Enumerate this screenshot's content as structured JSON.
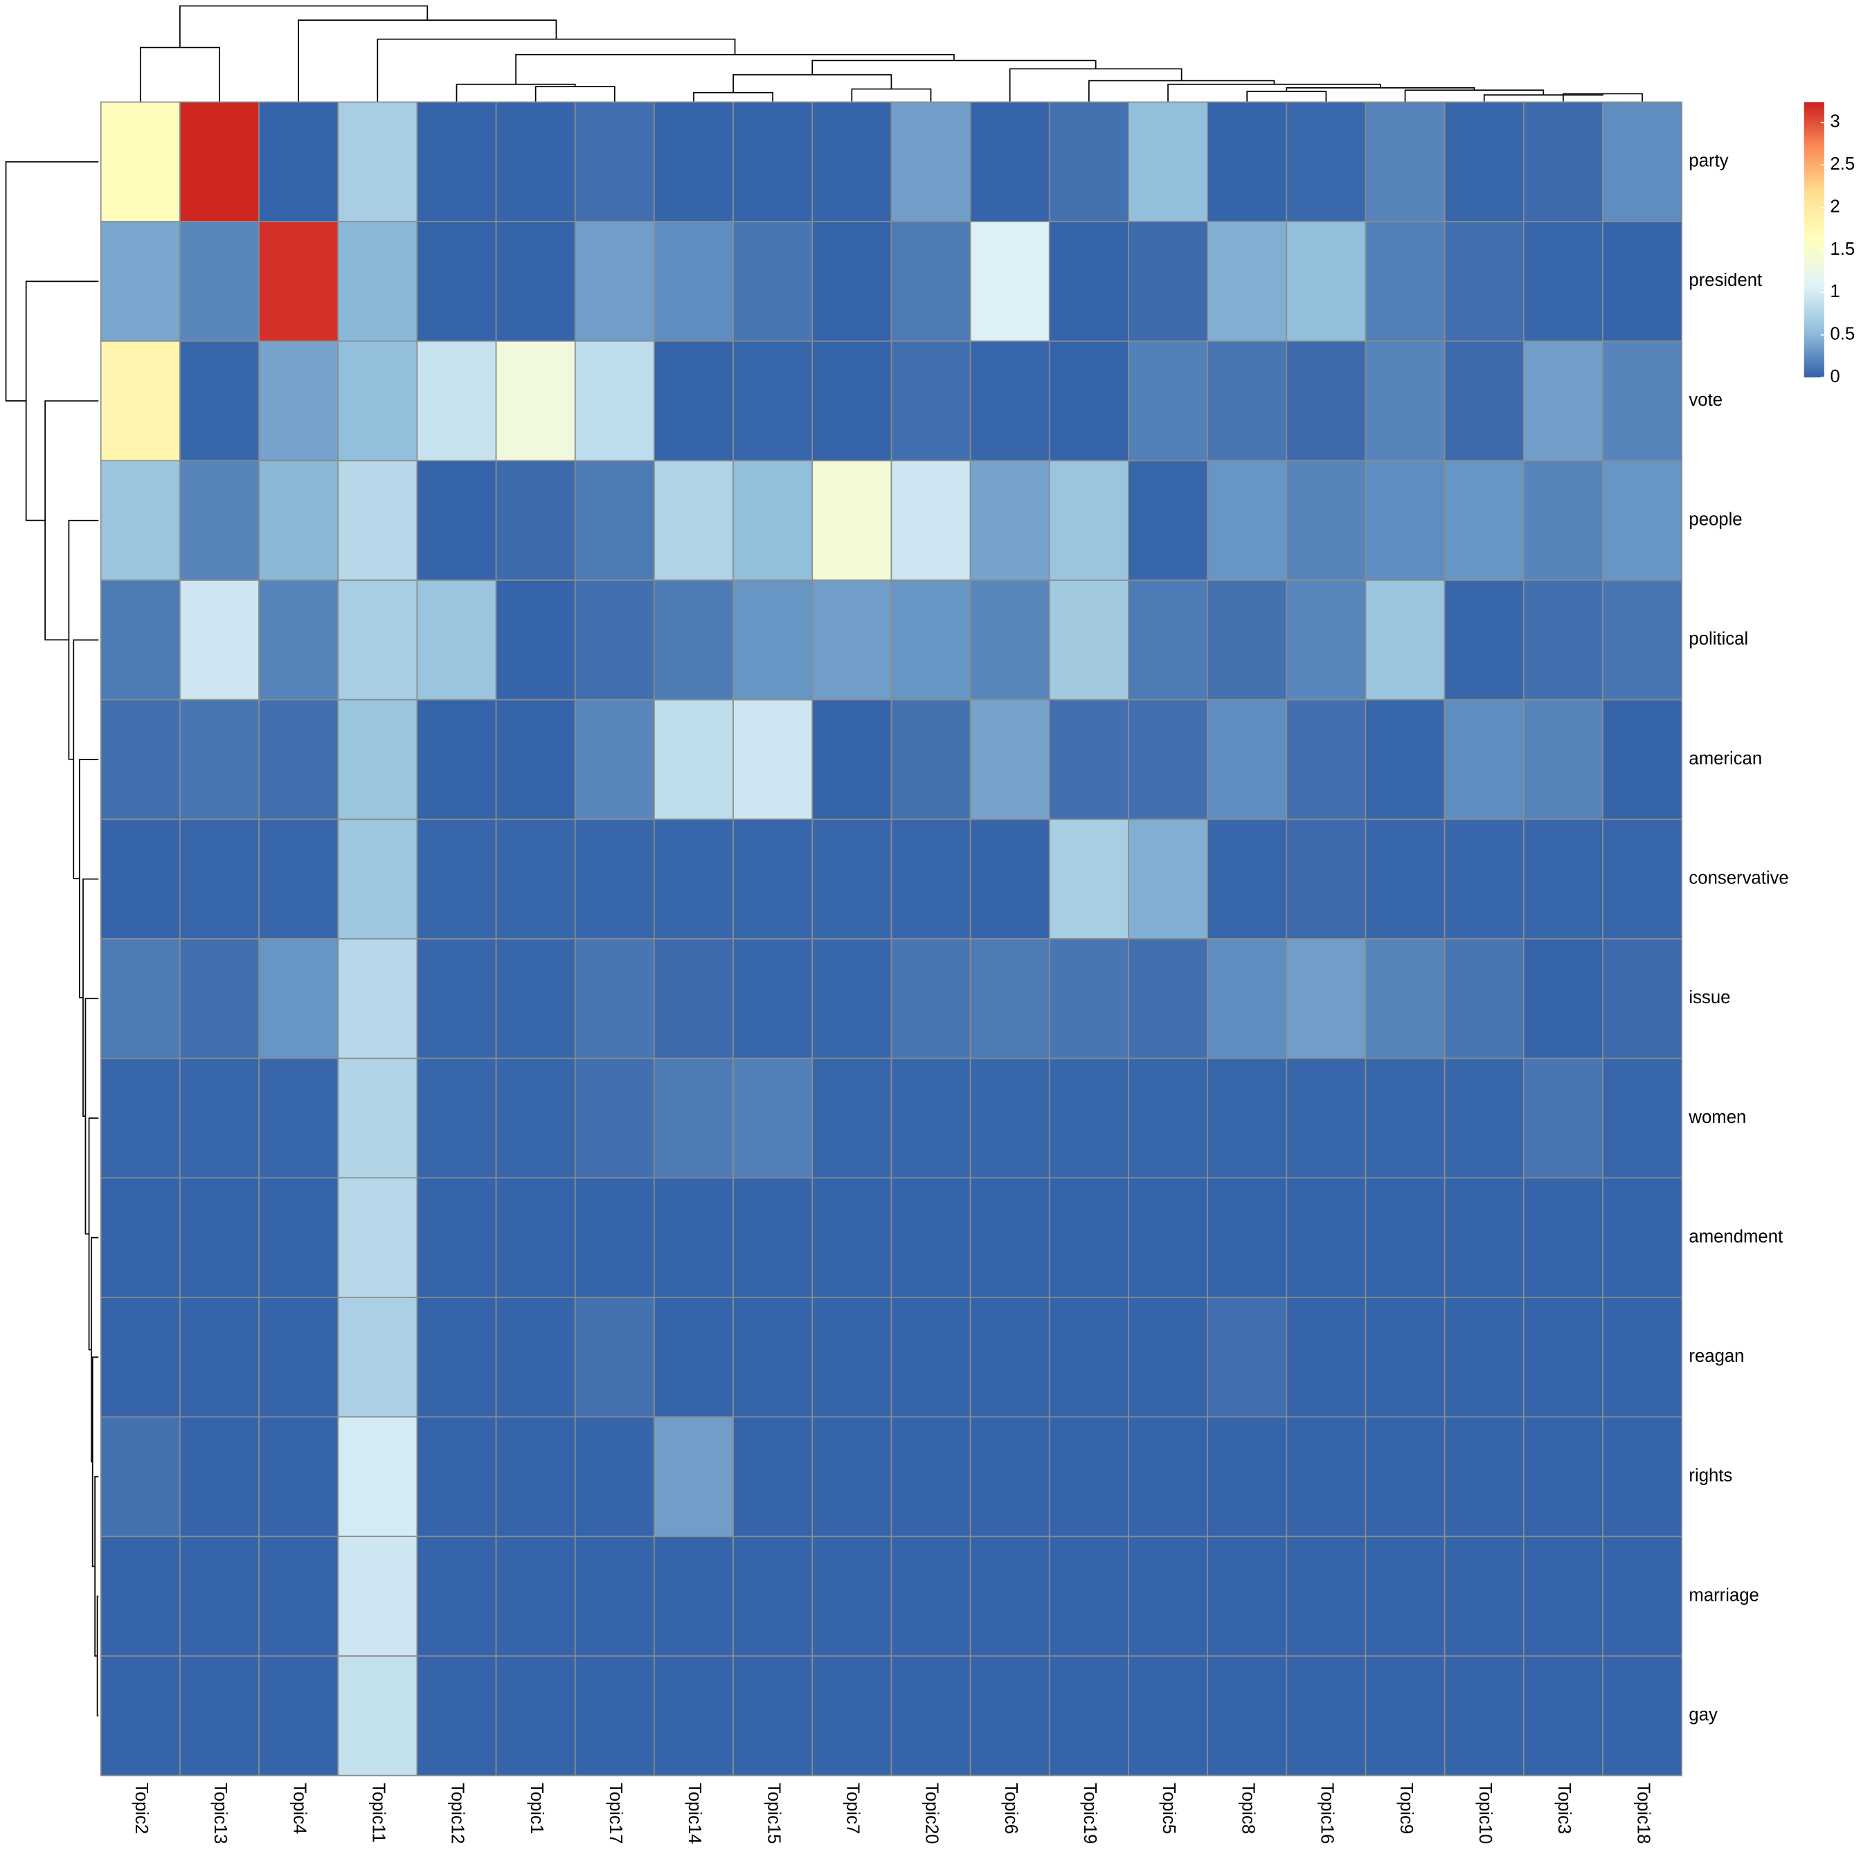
{
  "chart_data": {
    "type": "heatmap",
    "rows": [
      "party",
      "president",
      "vote",
      "people",
      "political",
      "american",
      "conservative",
      "issue",
      "women",
      "amendment",
      "reagan",
      "rights",
      "marriage",
      "gay"
    ],
    "columns": [
      "Topic2",
      "Topic13",
      "Topic4",
      "Topic11",
      "Topic12",
      "Topic1",
      "Topic17",
      "Topic14",
      "Topic15",
      "Topic7",
      "Topic20",
      "Topic6",
      "Topic19",
      "Topic5",
      "Topic8",
      "Topic16",
      "Topic9",
      "Topic10",
      "Topic3",
      "Topic18"
    ],
    "z": [
      [
        1.65,
        3.2,
        0.02,
        0.7,
        0.02,
        0.02,
        0.08,
        0.02,
        0.02,
        0.02,
        0.35,
        0.02,
        0.1,
        0.55,
        0.02,
        0.04,
        0.2,
        0.03,
        0.05,
        0.25
      ],
      [
        0.4,
        0.22,
        3.15,
        0.5,
        0.02,
        0.02,
        0.35,
        0.25,
        0.12,
        0.02,
        0.15,
        1.05,
        0.02,
        0.05,
        0.45,
        0.55,
        0.18,
        0.08,
        0.03,
        0.02
      ],
      [
        1.8,
        0.03,
        0.38,
        0.55,
        0.9,
        1.35,
        0.85,
        0.02,
        0.03,
        0.02,
        0.08,
        0.03,
        0.02,
        0.18,
        0.12,
        0.05,
        0.2,
        0.05,
        0.35,
        0.2
      ],
      [
        0.6,
        0.2,
        0.5,
        0.8,
        0.02,
        0.05,
        0.15,
        0.75,
        0.55,
        1.4,
        0.95,
        0.38,
        0.6,
        0.03,
        0.3,
        0.2,
        0.25,
        0.3,
        0.2,
        0.3
      ],
      [
        0.15,
        0.95,
        0.2,
        0.7,
        0.6,
        0.02,
        0.08,
        0.15,
        0.3,
        0.35,
        0.3,
        0.22,
        0.65,
        0.15,
        0.1,
        0.22,
        0.6,
        0.03,
        0.08,
        0.12
      ],
      [
        0.08,
        0.12,
        0.08,
        0.6,
        0.02,
        0.02,
        0.22,
        0.85,
        0.95,
        0.02,
        0.1,
        0.38,
        0.08,
        0.08,
        0.25,
        0.08,
        0.03,
        0.25,
        0.2,
        0.02
      ],
      [
        0.02,
        0.03,
        0.03,
        0.62,
        0.03,
        0.03,
        0.03,
        0.03,
        0.03,
        0.03,
        0.03,
        0.02,
        0.7,
        0.45,
        0.03,
        0.05,
        0.03,
        0.03,
        0.03,
        0.03
      ],
      [
        0.15,
        0.08,
        0.3,
        0.8,
        0.03,
        0.03,
        0.12,
        0.05,
        0.03,
        0.03,
        0.12,
        0.15,
        0.12,
        0.08,
        0.25,
        0.35,
        0.2,
        0.12,
        0.02,
        0.05
      ],
      [
        0.03,
        0.03,
        0.03,
        0.75,
        0.03,
        0.03,
        0.08,
        0.15,
        0.18,
        0.03,
        0.03,
        0.03,
        0.03,
        0.03,
        0.03,
        0.03,
        0.03,
        0.03,
        0.12,
        0.03
      ],
      [
        0.02,
        0.02,
        0.02,
        0.8,
        0.02,
        0.02,
        0.02,
        0.02,
        0.02,
        0.02,
        0.02,
        0.02,
        0.02,
        0.02,
        0.02,
        0.02,
        0.02,
        0.02,
        0.02,
        0.02
      ],
      [
        0.02,
        0.02,
        0.02,
        0.72,
        0.02,
        0.02,
        0.1,
        0.02,
        0.02,
        0.02,
        0.02,
        0.02,
        0.02,
        0.02,
        0.08,
        0.02,
        0.02,
        0.02,
        0.02,
        0.02
      ],
      [
        0.1,
        0.02,
        0.02,
        1.0,
        0.02,
        0.02,
        0.02,
        0.35,
        0.02,
        0.02,
        0.02,
        0.02,
        0.02,
        0.02,
        0.02,
        0.02,
        0.02,
        0.02,
        0.02,
        0.02
      ],
      [
        0.02,
        0.02,
        0.02,
        0.95,
        0.02,
        0.02,
        0.02,
        0.02,
        0.02,
        0.02,
        0.02,
        0.02,
        0.02,
        0.02,
        0.02,
        0.02,
        0.02,
        0.02,
        0.02,
        0.02
      ],
      [
        0.02,
        0.02,
        0.02,
        0.88,
        0.02,
        0.02,
        0.02,
        0.02,
        0.02,
        0.02,
        0.02,
        0.02,
        0.02,
        0.02,
        0.02,
        0.02,
        0.02,
        0.02,
        0.02,
        0.02
      ]
    ],
    "colorscale": [
      "#3361a8",
      "#91bfdb",
      "#e0f3f8",
      "#ffffbf",
      "#fee090",
      "#fc8d59",
      "#cc1e1e"
    ],
    "ylim": [
      0,
      3.24
    ],
    "yticks": [
      0,
      0.5,
      1,
      1.5,
      2,
      2.5,
      3
    ]
  }
}
